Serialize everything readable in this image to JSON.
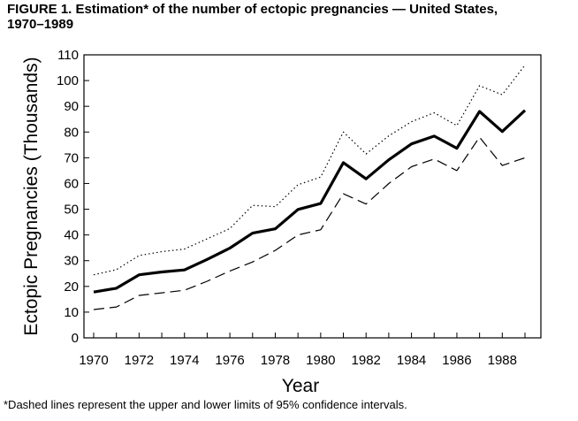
{
  "title_line1": "FIGURE 1. Estimation* of the number of ectopic pregnancies — United States,",
  "title_line2": "1970–1989",
  "footnote": "*Dashed lines represent the upper and lower limits of 95% confidence intervals.",
  "chart_data": {
    "type": "line",
    "xlabel": "Year",
    "ylabel": "Ectopic Pregnancies (Thousands)",
    "xlim": [
      1970,
      1989
    ],
    "ylim": [
      0,
      110
    ],
    "x_ticks": [
      1970,
      1972,
      1974,
      1976,
      1978,
      1980,
      1982,
      1984,
      1986,
      1988
    ],
    "y_ticks": [
      0,
      10,
      20,
      30,
      40,
      50,
      60,
      70,
      80,
      90,
      100,
      110
    ],
    "grid": false,
    "legend": "none",
    "x": [
      1970,
      1971,
      1972,
      1973,
      1974,
      1975,
      1976,
      1977,
      1978,
      1979,
      1980,
      1981,
      1982,
      1983,
      1984,
      1985,
      1986,
      1987,
      1988,
      1989
    ],
    "series": [
      {
        "style": "solid-thick",
        "values": [
          17.8,
          19.3,
          24.5,
          25.6,
          26.4,
          30.5,
          34.9,
          40.7,
          42.4,
          49.9,
          52.2,
          68.1,
          61.8,
          69.2,
          75.4,
          78.4,
          73.7,
          88.0,
          80.2,
          88.4
        ]
      },
      {
        "style": "dotted",
        "values": [
          24.5,
          26.5,
          32,
          33.5,
          34.5,
          38.5,
          42.5,
          51.5,
          51,
          59.5,
          62.5,
          80,
          71.5,
          78.5,
          84,
          87.5,
          82.5,
          98,
          94.5,
          106
        ]
      },
      {
        "style": "dashed",
        "values": [
          11,
          12,
          16.5,
          17.5,
          18.5,
          22,
          26,
          29.5,
          34,
          40,
          42,
          56,
          52,
          60,
          66.5,
          69.5,
          65,
          78,
          67,
          70
        ]
      }
    ]
  }
}
